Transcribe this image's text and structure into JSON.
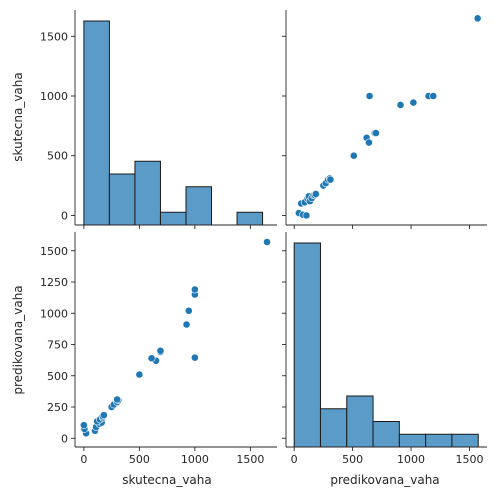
{
  "chart_data": {
    "type": "pairplot",
    "variables": [
      "skutecna_vaha",
      "predikovana_vaha"
    ],
    "colors": {
      "bar_fill": "#5a9bc8",
      "point": "#1f77b4"
    },
    "panels": [
      {
        "id": "hist-skutecna",
        "type": "bar",
        "row": 0,
        "col": 0,
        "variable": "skutecna_vaha",
        "xlim": [
          -80,
          1740
        ],
        "bins": [
          {
            "x0": 0,
            "x1": 230,
            "count": 16
          },
          {
            "x0": 230,
            "x1": 460,
            "count": 4
          },
          {
            "x0": 460,
            "x1": 690,
            "count": 5
          },
          {
            "x0": 690,
            "x1": 920,
            "count": 1
          },
          {
            "x0": 920,
            "x1": 1150,
            "count": 3
          },
          {
            "x0": 1150,
            "x1": 1380,
            "count": 0
          },
          {
            "x0": 1380,
            "x1": 1610,
            "count": 1
          }
        ]
      },
      {
        "id": "scatter-top-right",
        "type": "scatter",
        "row": 0,
        "col": 1,
        "x_variable": "predikovana_vaha",
        "y_variable": "skutecna_vaha",
        "xlim": [
          -70,
          1650
        ],
        "ylim": [
          -80,
          1720
        ],
        "points": [
          [
            40,
            20
          ],
          [
            60,
            100
          ],
          [
            75,
            5
          ],
          [
            90,
            110
          ],
          [
            105,
            0
          ],
          [
            115,
            140
          ],
          [
            125,
            160
          ],
          [
            135,
            120
          ],
          [
            150,
            145
          ],
          [
            165,
            170
          ],
          [
            175,
            170
          ],
          [
            185,
            180
          ],
          [
            250,
            250
          ],
          [
            270,
            270
          ],
          [
            290,
            300
          ],
          [
            305,
            310
          ],
          [
            310,
            300
          ],
          [
            510,
            500
          ],
          [
            620,
            650
          ],
          [
            640,
            610
          ],
          [
            645,
            1000
          ],
          [
            690,
            690
          ],
          [
            700,
            690
          ],
          [
            910,
            925
          ],
          [
            1020,
            945
          ],
          [
            1150,
            1000
          ],
          [
            1190,
            1000
          ],
          [
            1570,
            1650
          ]
        ]
      },
      {
        "id": "scatter-bottom-left",
        "type": "scatter",
        "row": 1,
        "col": 0,
        "x_variable": "skutecna_vaha",
        "y_variable": "predikovana_vaha",
        "xlim": [
          -80,
          1740
        ],
        "ylim": [
          -70,
          1650
        ],
        "points": [
          [
            20,
            40
          ],
          [
            100,
            60
          ],
          [
            5,
            75
          ],
          [
            110,
            90
          ],
          [
            0,
            105
          ],
          [
            140,
            115
          ],
          [
            160,
            125
          ],
          [
            120,
            135
          ],
          [
            145,
            150
          ],
          [
            170,
            165
          ],
          [
            170,
            175
          ],
          [
            180,
            185
          ],
          [
            250,
            250
          ],
          [
            270,
            270
          ],
          [
            300,
            290
          ],
          [
            310,
            305
          ],
          [
            300,
            310
          ],
          [
            500,
            510
          ],
          [
            650,
            620
          ],
          [
            610,
            640
          ],
          [
            1000,
            645
          ],
          [
            690,
            690
          ],
          [
            690,
            700
          ],
          [
            925,
            910
          ],
          [
            945,
            1020
          ],
          [
            1000,
            1150
          ],
          [
            1000,
            1190
          ],
          [
            1650,
            1570
          ]
        ]
      },
      {
        "id": "hist-predikovana",
        "type": "bar",
        "row": 1,
        "col": 1,
        "variable": "predikovana_vaha",
        "xlim": [
          -70,
          1650
        ],
        "bins": [
          {
            "x0": 0,
            "x1": 225,
            "count": 16
          },
          {
            "x0": 225,
            "x1": 450,
            "count": 3
          },
          {
            "x0": 450,
            "x1": 675,
            "count": 4
          },
          {
            "x0": 675,
            "x1": 900,
            "count": 2
          },
          {
            "x0": 900,
            "x1": 1125,
            "count": 1
          },
          {
            "x0": 1125,
            "x1": 1350,
            "count": 1
          },
          {
            "x0": 1350,
            "x1": 1575,
            "count": 1
          }
        ]
      }
    ],
    "ticks": {
      "skutecna_vaha": [
        0,
        500,
        1000,
        1500
      ],
      "predikovana_vaha_x": [
        0,
        500,
        1000,
        1500
      ],
      "skutecna_vaha_y": [
        0,
        500,
        1000,
        1500
      ],
      "predikovana_vaha_y": [
        0,
        250,
        500,
        750,
        1000,
        1250,
        1500
      ]
    },
    "tick_labels": {
      "skutecna_vaha": [
        "0",
        "500",
        "1000",
        "1500"
      ],
      "predikovana_vaha_x": [
        "0",
        "500",
        "1000",
        "1500"
      ],
      "skutecna_vaha_y": [
        "0",
        "500",
        "1000",
        "1500"
      ],
      "predikovana_vaha_y": [
        "0",
        "250",
        "500",
        "750",
        "1000",
        "1250",
        "1500"
      ]
    },
    "xlabels": [
      "skutecna_vaha",
      "predikovana_vaha"
    ],
    "ylabels": [
      "skutecna_vaha",
      "predikovana_vaha"
    ]
  }
}
